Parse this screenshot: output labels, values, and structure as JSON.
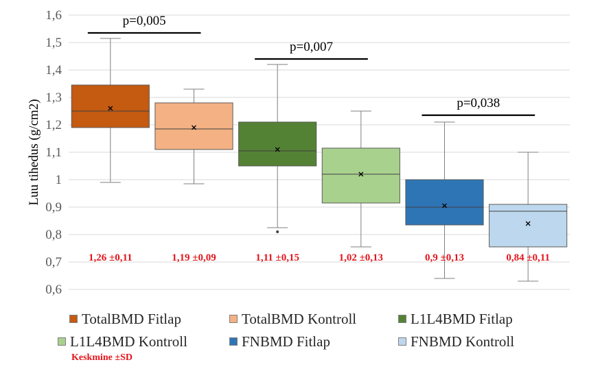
{
  "chart_data": {
    "type": "box",
    "ylabel": "Luu tihedus (g/cm2)",
    "ylim": [
      0.6,
      1.6
    ],
    "yticks": [
      "0,6",
      "0,7",
      "0,8",
      "0,9",
      "1",
      "1,1",
      "1,2",
      "1,3",
      "1,4",
      "1,5",
      "1,6"
    ],
    "ytick_values": [
      0.6,
      0.7,
      0.8,
      0.9,
      1.0,
      1.1,
      1.2,
      1.3,
      1.4,
      1.5,
      1.6
    ],
    "grid": true,
    "legend_position": "bottom",
    "series": [
      {
        "name": "TotalBMD Fitlap",
        "color": "#c55a11",
        "min": 0.99,
        "q1": 1.19,
        "median": 1.25,
        "q3": 1.345,
        "max": 1.515,
        "mean": 1.26,
        "outliers": [],
        "stat_label": "1,26 ±0,11"
      },
      {
        "name": "TotalBMD Kontroll",
        "color": "#f4b183",
        "min": 0.985,
        "q1": 1.11,
        "median": 1.185,
        "q3": 1.28,
        "max": 1.33,
        "mean": 1.19,
        "outliers": [],
        "stat_label": "1,19 ±0,09"
      },
      {
        "name": "L1L4BMD Fitlap",
        "color": "#548235",
        "min": 0.825,
        "q1": 1.05,
        "median": 1.105,
        "q3": 1.21,
        "max": 1.42,
        "mean": 1.11,
        "outliers": [
          0.81
        ],
        "stat_label": "1,11 ±0,15"
      },
      {
        "name": "L1L4BMD Kontroll",
        "color": "#a9d18e",
        "min": 0.755,
        "q1": 0.915,
        "median": 1.02,
        "q3": 1.115,
        "max": 1.25,
        "mean": 1.02,
        "outliers": [],
        "stat_label": "1,02 ±0,13"
      },
      {
        "name": "FNBMD Fitlap",
        "color": "#2e75b6",
        "min": 0.64,
        "q1": 0.835,
        "median": 0.9,
        "q3": 1.0,
        "max": 1.21,
        "mean": 0.905,
        "outliers": [],
        "stat_label": "0,9 ±0,13"
      },
      {
        "name": "FNBMD Kontroll",
        "color": "#bdd7ee",
        "min": 0.63,
        "q1": 0.755,
        "median": 0.885,
        "q3": 0.91,
        "max": 1.1,
        "mean": 0.84,
        "outliers": [],
        "stat_label": "0,84 ±0,11"
      }
    ],
    "annotations": [
      {
        "text": "p=0,005",
        "from": 0,
        "to": 1,
        "y": 1.535
      },
      {
        "text": "p=0,007",
        "from": 2,
        "to": 3,
        "y": 1.44
      },
      {
        "text": "p=0,038",
        "from": 4,
        "to": 5,
        "y": 1.235
      }
    ],
    "note": "Keskmine ±SD"
  }
}
